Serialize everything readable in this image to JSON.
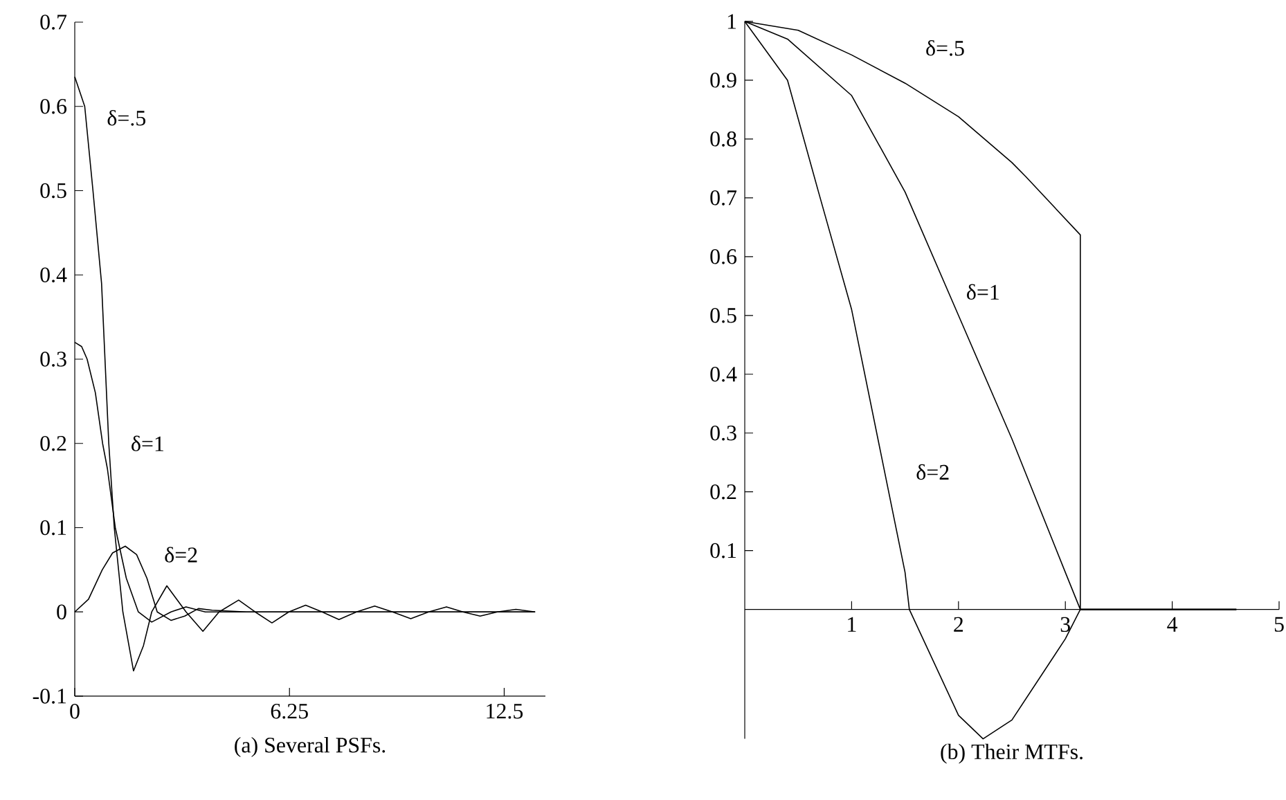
{
  "chart_data": [
    {
      "type": "line",
      "title": "(a)  Several PSFs.",
      "xlim": [
        0,
        13.7
      ],
      "ylim": [
        -0.1,
        0.7
      ],
      "xticks": [
        0,
        6.25,
        12.5
      ],
      "yticks": [
        -0.1,
        0,
        0.1,
        0.2,
        0.3,
        0.4,
        0.5,
        0.6,
        0.7
      ],
      "series": [
        {
          "name": "δ=.5",
          "color": "#000000",
          "x": [
            0,
            0.29,
            0.53,
            0.78,
            0.99,
            1.15,
            1.4,
            1.71,
            2.0,
            2.24,
            2.68,
            3.24,
            3.73,
            4.2,
            4.77,
            5.25,
            5.74,
            6.23,
            6.72,
            7.2,
            7.69,
            8.2,
            8.73,
            9.25,
            9.78,
            10.3,
            10.82,
            11.3,
            11.8,
            12.3,
            12.84,
            13.4
          ],
          "values": [
            0.635,
            0.6,
            0.5,
            0.39,
            0.2,
            0.1,
            0,
            -0.07,
            -0.04,
            0,
            0.031,
            0,
            -0.023,
            0,
            0.014,
            0,
            -0.013,
            0,
            0.008,
            0,
            -0.009,
            0,
            0.007,
            0,
            -0.008,
            0,
            0.006,
            0,
            -0.005,
            0,
            0.003,
            0
          ]
        },
        {
          "name": "δ=1",
          "color": "#000000",
          "x": [
            0,
            0.2,
            0.36,
            0.6,
            0.81,
            0.95,
            1.18,
            1.5,
            1.85,
            2.24,
            2.8,
            3.24,
            3.8,
            5,
            7,
            9,
            11,
            13.4
          ],
          "values": [
            0.32,
            0.315,
            0.3,
            0.26,
            0.2,
            0.17,
            0.1,
            0.04,
            0,
            -0.012,
            0,
            0.006,
            0,
            0,
            0,
            0,
            0,
            0
          ]
        },
        {
          "name": "δ=2",
          "color": "#000000",
          "x": [
            0,
            0.4,
            0.8,
            1.1,
            1.47,
            1.8,
            2.1,
            2.4,
            2.8,
            3.2,
            3.6,
            4,
            5,
            7,
            9,
            11,
            13.4
          ],
          "values": [
            0,
            0.015,
            0.05,
            0.07,
            0.078,
            0.068,
            0.04,
            0,
            -0.01,
            -0.005,
            0.004,
            0.002,
            0,
            0,
            0,
            0,
            0
          ]
        }
      ]
    },
    {
      "type": "line",
      "title": "(b)  Their MTFs.",
      "xlim": [
        0,
        5
      ],
      "ylim": [
        -0.22,
        1
      ],
      "xticks": [
        1,
        2,
        3,
        4,
        5
      ],
      "yticks": [
        0.1,
        0.2,
        0.3,
        0.4,
        0.5,
        0.6,
        0.7,
        0.8,
        0.9,
        1
      ],
      "series": [
        {
          "name": "δ=.5",
          "color": "#000000",
          "x": [
            0,
            0.5,
            1,
            1.5,
            2,
            2.5,
            2.63,
            3.14,
            3.14,
            4.6
          ],
          "values": [
            1,
            0.985,
            0.943,
            0.895,
            0.838,
            0.76,
            0.736,
            0.637,
            0,
            0
          ]
        },
        {
          "name": "δ=1",
          "color": "#000000",
          "x": [
            0,
            0.4,
            1,
            1.5,
            2,
            2.5,
            3,
            3.14,
            4.6
          ],
          "values": [
            1,
            0.97,
            0.874,
            0.71,
            0.5,
            0.29,
            0.063,
            0,
            0
          ]
        },
        {
          "name": "δ=2",
          "color": "#000000",
          "x": [
            0,
            0.4,
            0.69,
            1,
            1.5,
            1.54,
            2,
            2.23,
            2.5,
            3,
            3.14,
            4.6
          ],
          "values": [
            1,
            0.9,
            0.71,
            0.51,
            0.063,
            0,
            -0.18,
            -0.22,
            -0.188,
            -0.05,
            0,
            0
          ]
        }
      ]
    }
  ]
}
